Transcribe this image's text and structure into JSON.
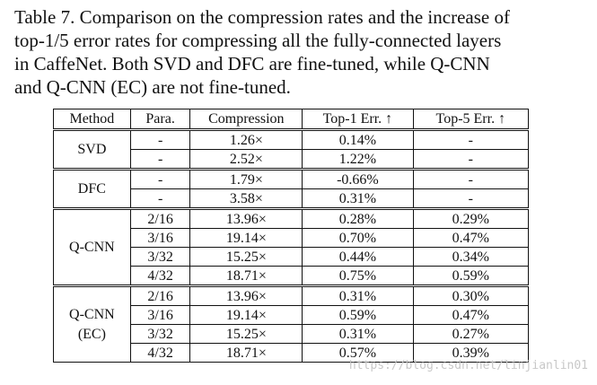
{
  "caption": {
    "lines": [
      "Table 7. Comparison on the compression rates and the increase of",
      "top-1/5 error rates for compressing all the fully-connected layers",
      "in CaffeNet.  Both SVD and DFC are fine-tuned, while Q-CNN",
      "and Q-CNN (EC) are not fine-tuned."
    ]
  },
  "table": {
    "headers": [
      "Method",
      "Para.",
      "Compression",
      "Top-1 Err. ↑",
      "Top-5 Err. ↑"
    ],
    "groups": [
      {
        "method": "SVD",
        "rows": [
          {
            "para": "-",
            "compression": "1.26×",
            "top1": "0.14%",
            "top5": "-"
          },
          {
            "para": "-",
            "compression": "2.52×",
            "top1": "1.22%",
            "top5": "-"
          }
        ]
      },
      {
        "method": "DFC",
        "rows": [
          {
            "para": "-",
            "compression": "1.79×",
            "top1": "-0.66%",
            "top5": "-"
          },
          {
            "para": "-",
            "compression": "3.58×",
            "top1": "0.31%",
            "top5": "-"
          }
        ]
      },
      {
        "method": "Q-CNN",
        "rows": [
          {
            "para": "2/16",
            "compression": "13.96×",
            "top1": "0.28%",
            "top5": "0.29%"
          },
          {
            "para": "3/16",
            "compression": "19.14×",
            "top1": "0.70%",
            "top5": "0.47%"
          },
          {
            "para": "3/32",
            "compression": "15.25×",
            "top1": "0.44%",
            "top5": "0.34%"
          },
          {
            "para": "4/32",
            "compression": "18.71×",
            "top1": "0.75%",
            "top5": "0.59%"
          }
        ]
      },
      {
        "method": "Q-CNN\n(EC)",
        "rows": [
          {
            "para": "2/16",
            "compression": "13.96×",
            "top1": "0.31%",
            "top5": "0.30%"
          },
          {
            "para": "3/16",
            "compression": "19.14×",
            "top1": "0.59%",
            "top5": "0.47%"
          },
          {
            "para": "3/32",
            "compression": "15.25×",
            "top1": "0.31%",
            "top5": "0.27%"
          },
          {
            "para": "4/32",
            "compression": "18.71×",
            "top1": "0.57%",
            "top5": "0.39%"
          }
        ]
      }
    ]
  },
  "watermark": "https://blog.csdn.net/linjianlin01"
}
